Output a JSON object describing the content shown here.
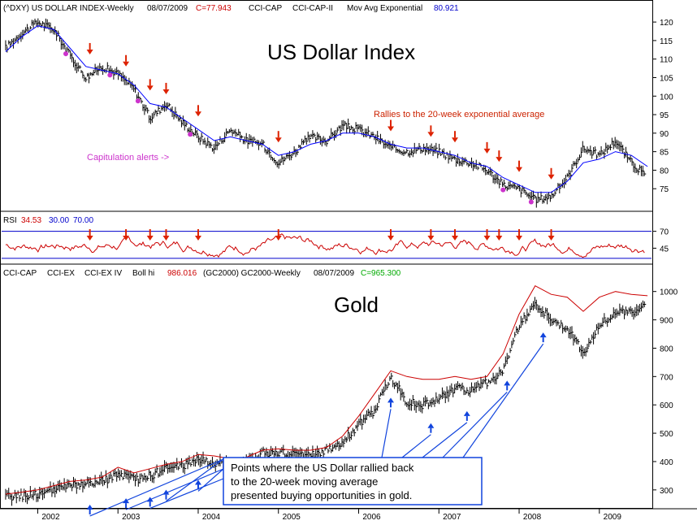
{
  "panels": {
    "dollar": {
      "header": {
        "symbol": "(^DXY) US DOLLAR INDEX-Weekly",
        "date": "08/07/2009",
        "close": "C=77.943",
        "ind1": "CCI-CAP",
        "ind2": "CCI-CAP-II",
        "ma_label": "Mov Avg Exponential",
        "ma_value": "80.921"
      },
      "title": "US Dollar Index",
      "annotation_rallies": "Rallies to the 20-week exponential average",
      "annotation_capitulation": "Capitulation alerts ->"
    },
    "rsi": {
      "label": "RSI",
      "value": "34.53",
      "low": "30.00",
      "high": "70.00"
    },
    "gold": {
      "header": {
        "ind1": "CCI-CAP",
        "ind2": "CCI-EX",
        "ind3": "CCI-EX IV",
        "boll_label": "Boll hi",
        "boll_value": "986.016",
        "symbol": "(GC2000) GC2000-Weekly",
        "date": "08/07/2009",
        "close": "C=965.300"
      },
      "title": "Gold",
      "callout": [
        "Points where the US Dollar rallied back",
        "to the 20-week moving average",
        "presented buying opportunities in gold."
      ]
    }
  },
  "colors": {
    "price_bars": "#000000",
    "moving_average": "#0000ff",
    "bollinger": "#cc0000",
    "rsi_line": "#cc0000",
    "rsi_bands": "#0000cc",
    "arrow_sell": "#dd2200",
    "arrow_buy": "#1144dd",
    "capitulation": "#cc33cc",
    "green_value": "#00aa00"
  },
  "chart_data": [
    {
      "type": "line",
      "name": "dollar",
      "title": "US Dollar Index",
      "ylim": [
        70,
        122
      ],
      "yticks": [
        75,
        80,
        85,
        90,
        95,
        100,
        105,
        110,
        115,
        120
      ],
      "x": [
        2001.6,
        2001.8,
        2002.0,
        2002.2,
        2002.4,
        2002.6,
        2002.8,
        2003.0,
        2003.2,
        2003.4,
        2003.6,
        2003.8,
        2004.0,
        2004.2,
        2004.4,
        2004.6,
        2004.8,
        2005.0,
        2005.2,
        2005.4,
        2005.6,
        2005.8,
        2006.0,
        2006.2,
        2006.4,
        2006.6,
        2006.8,
        2007.0,
        2007.2,
        2007.4,
        2007.6,
        2007.8,
        2008.0,
        2008.2,
        2008.4,
        2008.6,
        2008.8,
        2009.0,
        2009.2,
        2009.4,
        2009.6
      ],
      "series": [
        {
          "values": [
            113,
            117,
            120,
            118,
            111,
            105,
            108,
            106,
            102,
            94,
            98,
            93,
            89,
            86,
            91,
            88,
            87,
            82,
            85,
            89,
            88,
            92,
            91,
            89,
            86,
            85,
            86,
            85,
            83,
            82,
            80,
            76,
            75,
            72,
            73,
            78,
            86,
            84,
            88,
            82,
            78
          ]
        },
        {
          "values": [
            112,
            116,
            119,
            118,
            113,
            108,
            107,
            106,
            103,
            98,
            97,
            94,
            91,
            88,
            89,
            88,
            87,
            84,
            85,
            87,
            88,
            90,
            90,
            89,
            87,
            86,
            86,
            85,
            84,
            82,
            81,
            78,
            76,
            74,
            74,
            77,
            82,
            83,
            85,
            84,
            81
          ]
        }
      ],
      "sell_arrows_x": [
        2002.65,
        2003.1,
        2003.4,
        2003.6,
        2004.0,
        2005.0,
        2006.4,
        2006.9,
        2007.2,
        2007.6,
        2007.75,
        2008.0,
        2008.4
      ],
      "capitulation_x": [
        2002.35,
        2002.9,
        2003.25,
        2003.9,
        2007.8,
        2008.15
      ],
      "xlabels": [
        "2002",
        "2003",
        "2004",
        "2005",
        "2006",
        "2007",
        "2008",
        "2009"
      ],
      "xticks": [
        2002,
        2003,
        2004,
        2005,
        2006,
        2007,
        2008,
        2009
      ]
    },
    {
      "type": "line",
      "name": "rsi",
      "ylim": [
        25,
        78
      ],
      "yticks": [
        45,
        70
      ],
      "bands": [
        30,
        70
      ],
      "sell_arrows_x": [
        2002.65,
        2003.1,
        2003.4,
        2003.6,
        2004.0,
        2005.0,
        2006.4,
        2006.9,
        2007.2,
        2007.6,
        2007.75,
        2008.0,
        2008.4
      ]
    },
    {
      "type": "line",
      "name": "gold",
      "title": "Gold",
      "ylim": [
        245,
        1045
      ],
      "yticks": [
        300,
        400,
        500,
        600,
        700,
        800,
        900,
        1000
      ],
      "x": [
        2001.6,
        2001.8,
        2002.0,
        2002.2,
        2002.4,
        2002.6,
        2002.8,
        2003.0,
        2003.2,
        2003.4,
        2003.6,
        2003.8,
        2004.0,
        2004.2,
        2004.4,
        2004.6,
        2004.8,
        2005.0,
        2005.2,
        2005.4,
        2005.6,
        2005.8,
        2006.0,
        2006.2,
        2006.4,
        2006.6,
        2006.8,
        2007.0,
        2007.2,
        2007.4,
        2007.6,
        2007.8,
        2008.0,
        2008.2,
        2008.4,
        2008.6,
        2008.8,
        2009.0,
        2009.2,
        2009.4,
        2009.6
      ],
      "series": [
        {
          "values": [
            275,
            280,
            285,
            300,
            315,
            320,
            330,
            355,
            335,
            350,
            375,
            385,
            410,
            390,
            395,
            400,
            430,
            430,
            425,
            425,
            440,
            470,
            530,
            580,
            700,
            610,
            600,
            620,
            660,
            650,
            680,
            720,
            880,
            960,
            900,
            870,
            780,
            880,
            930,
            920,
            960
          ]
        },
        {
          "values": [
            285,
            292,
            300,
            315,
            330,
            335,
            345,
            380,
            360,
            375,
            390,
            400,
            425,
            420,
            410,
            415,
            440,
            445,
            440,
            440,
            450,
            490,
            560,
            640,
            720,
            700,
            690,
            690,
            700,
            690,
            700,
            780,
            920,
            1020,
            990,
            980,
            930,
            980,
            1000,
            990,
            985
          ]
        }
      ],
      "buy_arrows_x": [
        2002.65,
        2003.1,
        2003.4,
        2003.6,
        2004.0,
        2005.0,
        2006.4,
        2006.9,
        2007.35,
        2007.85,
        2008.3
      ],
      "xlabels": [
        "2002",
        "2003",
        "2004",
        "2005",
        "2006",
        "2007",
        "2008",
        "2009"
      ],
      "xticks": [
        2002,
        2003,
        2004,
        2005,
        2006,
        2007,
        2008,
        2009
      ]
    }
  ]
}
